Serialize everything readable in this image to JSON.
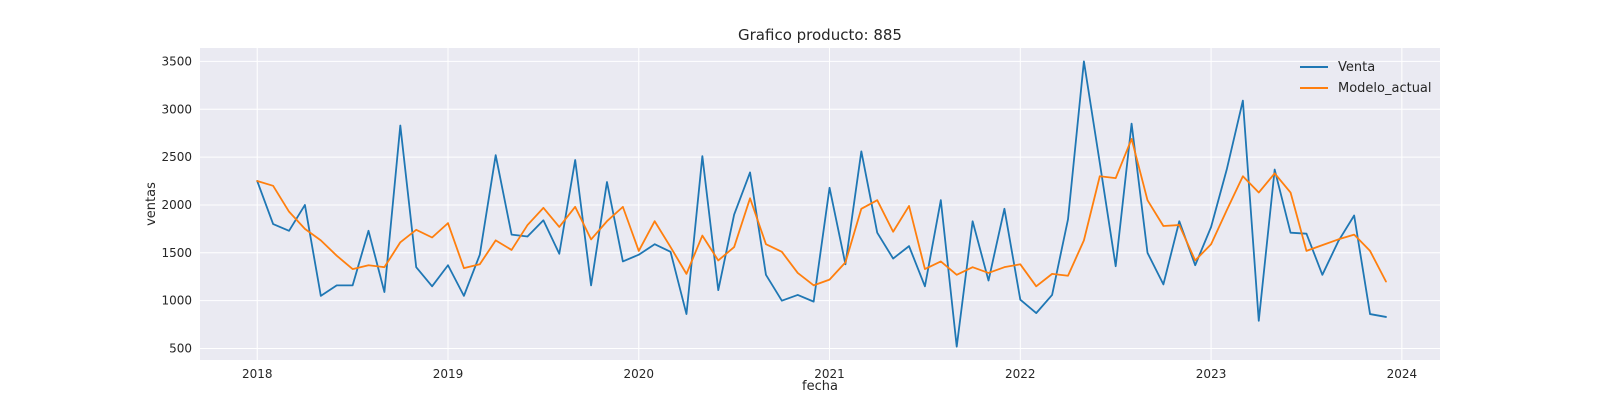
{
  "chart_data": {
    "type": "line",
    "title": "Grafico producto: 885",
    "xlabel": "fecha",
    "ylabel": "ventas",
    "x_start": "2018-01",
    "x_step": "month",
    "xlim": [
      2017.7,
      2024.2
    ],
    "ylim": [
      380,
      3640
    ],
    "xticks": [
      2018,
      2019,
      2020,
      2021,
      2022,
      2023,
      2024
    ],
    "xtick_labels": [
      "2018",
      "2019",
      "2020",
      "2021",
      "2022",
      "2023",
      "2024"
    ],
    "yticks": [
      500,
      1000,
      1500,
      2000,
      2500,
      3000,
      3500
    ],
    "ytick_labels": [
      "500",
      "1000",
      "1500",
      "2000",
      "2500",
      "3000",
      "3500"
    ],
    "grid": true,
    "legend_position": "top-right",
    "series": [
      {
        "name": "Venta",
        "color": "#1f77b4",
        "values": [
          2250,
          1800,
          1730,
          2000,
          1050,
          1160,
          1160,
          1730,
          1090,
          2830,
          1350,
          1150,
          1370,
          1050,
          1480,
          2520,
          1690,
          1670,
          1840,
          1490,
          2470,
          1160,
          2240,
          1410,
          1480,
          1590,
          1510,
          860,
          2510,
          1110,
          1900,
          2340,
          1270,
          1000,
          1060,
          990,
          2180,
          1380,
          2560,
          1710,
          1440,
          1570,
          1150,
          2050,
          520,
          1830,
          1210,
          1960,
          1010,
          870,
          1060,
          1850,
          3500,
          2440,
          1360,
          2850,
          1500,
          1170,
          1830,
          1370,
          1770,
          2380,
          3090,
          790,
          2370,
          1710,
          1700,
          1270,
          1620,
          1890,
          860,
          830
        ]
      },
      {
        "name": "Modelo_actual",
        "color": "#ff7f0e",
        "values": [
          2250,
          2200,
          1930,
          1750,
          1630,
          1470,
          1330,
          1370,
          1350,
          1610,
          1740,
          1660,
          1810,
          1340,
          1380,
          1630,
          1530,
          1790,
          1970,
          1770,
          1980,
          1640,
          1830,
          1980,
          1520,
          1830,
          1560,
          1280,
          1680,
          1420,
          1560,
          2070,
          1590,
          1510,
          1290,
          1160,
          1220,
          1400,
          1960,
          2050,
          1720,
          1990,
          1330,
          1410,
          1270,
          1350,
          1290,
          1350,
          1380,
          1150,
          1280,
          1260,
          1630,
          2300,
          2280,
          2690,
          2050,
          1780,
          1790,
          1420,
          1590,
          1950,
          2300,
          2130,
          2330,
          2130,
          1520,
          1580,
          1640,
          1690,
          1520,
          1200
        ]
      }
    ]
  }
}
